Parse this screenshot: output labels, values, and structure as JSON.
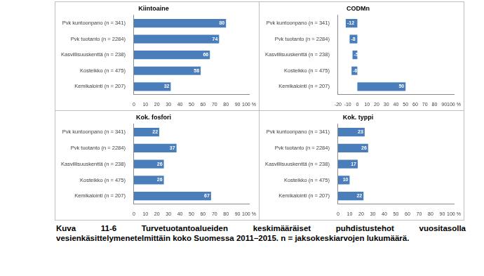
{
  "chart_data": [
    {
      "type": "bar",
      "title": "Kiintoaine",
      "orientation": "horizontal",
      "categories": [
        "Pvk kuntoonpano (n = 341)",
        "Pvk tuotanto (n = 2284)",
        "Kasvillisuuskenttä (n = 238)",
        "Kosteikko (n = 475)",
        "Kemikalointi (n = 207)"
      ],
      "values": [
        80,
        74,
        66,
        58,
        32
      ],
      "color": "#4a7ebb",
      "xlim": [
        0,
        100
      ],
      "xticks": [
        0,
        10,
        20,
        30,
        40,
        50,
        60,
        70,
        80,
        90,
        {
          "value": 100,
          "label": "100 %"
        }
      ],
      "grid": false,
      "data_labels": true
    },
    {
      "type": "bar",
      "title": "CODMn",
      "orientation": "horizontal",
      "categories": [
        "Pvk kuntoonpano (n = 341)",
        "Pvk tuotanto (n = 2284)",
        "Kasvillisuuskenttä (n = 238)",
        "Kosteikko (n = 475)",
        "Kemikalointi (n = 207)"
      ],
      "values": [
        -12,
        -8,
        -5,
        -6,
        50
      ],
      "color": "#4a7ebb",
      "xlim": [
        -20,
        100
      ],
      "xticks": [
        -20,
        -10,
        0,
        10,
        20,
        30,
        40,
        50,
        60,
        70,
        80,
        90,
        {
          "value": 100,
          "label": "100 %"
        }
      ],
      "grid": false,
      "data_labels": true
    },
    {
      "type": "bar",
      "title": "Kok. fosfori",
      "orientation": "horizontal",
      "categories": [
        "Pvk kuntoonpano (n = 341)",
        "Pvk tuotanto (n = 2284)",
        "Kasvillisuuskenttä (n = 238)",
        "Kosteikko (n = 475)",
        "Kemikalointi (n = 207)"
      ],
      "values": [
        22,
        37,
        26,
        26,
        67
      ],
      "color": "#4a7ebb",
      "xlim": [
        0,
        100
      ],
      "xticks": [
        0,
        10,
        20,
        30,
        40,
        50,
        60,
        70,
        80,
        90,
        {
          "value": 100,
          "label": "100 %"
        }
      ],
      "grid": false,
      "data_labels": true
    },
    {
      "type": "bar",
      "title": "Kok. typpi",
      "orientation": "horizontal",
      "categories": [
        "Pvk kuntoonpano (n = 341)",
        "Pvk tuotanto (n = 2284)",
        "Kasvillisuuskenttä (n = 238)",
        "Kosteikko (n = 475)",
        "Kemikalointi (n = 207)"
      ],
      "values": [
        23,
        26,
        17,
        10,
        22
      ],
      "color": "#4a7ebb",
      "xlim": [
        0,
        100
      ],
      "xticks": [
        0,
        10,
        20,
        30,
        40,
        50,
        60,
        70,
        80,
        90,
        {
          "value": 100,
          "label": "100 %"
        }
      ],
      "grid": false,
      "data_labels": true
    }
  ],
  "caption": "Kuva 11-6 Turvetuotantoalueiden keskimääräiset puhdistustehot vuositasolla vesienkäsittelymenetelmittäin koko Suomessa 2011–2015. n = jaksokeskiarvojen lukumäärä."
}
